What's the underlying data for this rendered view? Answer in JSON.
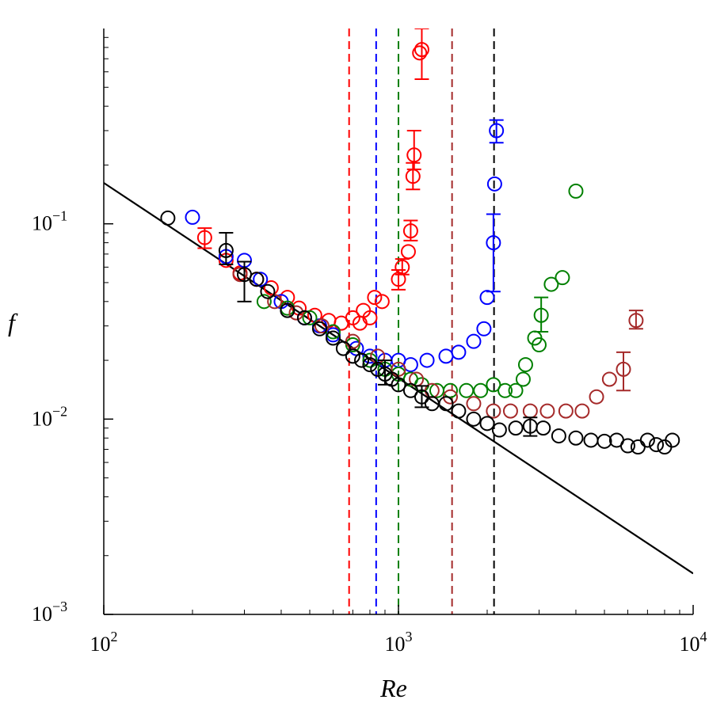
{
  "chart_data": {
    "type": "scatter",
    "title": "",
    "xlabel": "Re",
    "ylabel": "f",
    "xscale": "log",
    "yscale": "log",
    "xlim": [
      100,
      10000
    ],
    "ylim": [
      0.001,
      1
    ],
    "grid": false,
    "x_ticks": [
      {
        "value": 100,
        "base": "10",
        "exp": "2"
      },
      {
        "value": 1000,
        "base": "10",
        "exp": "3"
      },
      {
        "value": 10000,
        "base": "10",
        "exp": "4"
      }
    ],
    "y_ticks": [
      {
        "value": 0.001,
        "base": "10",
        "exp": "−3"
      },
      {
        "value": 0.01,
        "base": "10",
        "exp": "−2"
      },
      {
        "value": 0.1,
        "base": "10",
        "exp": "−1"
      }
    ],
    "reference_line": {
      "color": "#000000",
      "points": [
        [
          100,
          0.162
        ],
        [
          10000,
          0.00162
        ]
      ]
    },
    "vertical_lines": [
      {
        "x": 680,
        "color": "#ff0000"
      },
      {
        "x": 840,
        "color": "#0000ff"
      },
      {
        "x": 1000,
        "color": "#008000"
      },
      {
        "x": 1520,
        "color": "#a52a2a"
      },
      {
        "x": 2110,
        "color": "#000000"
      }
    ],
    "series": [
      {
        "color": "#ff0000",
        "points": [
          [
            220,
            0.085
          ],
          [
            260,
            0.065
          ],
          [
            290,
            0.056
          ],
          [
            330,
            0.052
          ],
          [
            370,
            0.047
          ],
          [
            420,
            0.042
          ],
          [
            460,
            0.037
          ],
          [
            520,
            0.034
          ],
          [
            580,
            0.032
          ],
          [
            640,
            0.031
          ],
          [
            700,
            0.033
          ],
          [
            740,
            0.031
          ],
          [
            760,
            0.036
          ],
          [
            800,
            0.033
          ],
          [
            830,
            0.042
          ],
          [
            880,
            0.04
          ],
          [
            1000,
            0.052
          ],
          [
            1030,
            0.06
          ],
          [
            1080,
            0.072
          ],
          [
            1100,
            0.092
          ],
          [
            1120,
            0.175
          ],
          [
            1130,
            0.225
          ],
          [
            1180,
            0.75
          ],
          [
            1200,
            0.78
          ]
        ],
        "error_bars": [
          [
            220,
            0.075,
            0.095
          ],
          [
            1000,
            0.046,
            0.058
          ],
          [
            1030,
            0.055,
            0.066
          ],
          [
            1100,
            0.082,
            0.104
          ],
          [
            1120,
            0.15,
            0.205
          ],
          [
            1130,
            0.19,
            0.3
          ],
          [
            1200,
            0.55,
            1.0
          ]
        ]
      },
      {
        "color": "#0000ff",
        "points": [
          [
            200,
            0.108
          ],
          [
            260,
            0.068
          ],
          [
            300,
            0.065
          ],
          [
            340,
            0.052
          ],
          [
            400,
            0.04
          ],
          [
            480,
            0.033
          ],
          [
            540,
            0.03
          ],
          [
            600,
            0.027
          ],
          [
            720,
            0.023
          ],
          [
            800,
            0.021
          ],
          [
            900,
            0.02
          ],
          [
            1000,
            0.02
          ],
          [
            1100,
            0.019
          ],
          [
            1250,
            0.02
          ],
          [
            1450,
            0.021
          ],
          [
            1600,
            0.022
          ],
          [
            1800,
            0.025
          ],
          [
            1950,
            0.029
          ],
          [
            2000,
            0.042
          ],
          [
            2100,
            0.08
          ],
          [
            2120,
            0.16
          ],
          [
            2150,
            0.3
          ]
        ],
        "error_bars": [
          [
            2100,
            0.045,
            0.112
          ],
          [
            2150,
            0.26,
            0.34
          ]
        ]
      },
      {
        "color": "#008000",
        "points": [
          [
            350,
            0.04
          ],
          [
            420,
            0.037
          ],
          [
            500,
            0.033
          ],
          [
            600,
            0.028
          ],
          [
            700,
            0.024
          ],
          [
            800,
            0.02
          ],
          [
            900,
            0.018
          ],
          [
            1000,
            0.017
          ],
          [
            1100,
            0.016
          ],
          [
            1200,
            0.015
          ],
          [
            1350,
            0.014
          ],
          [
            1500,
            0.014
          ],
          [
            1700,
            0.014
          ],
          [
            1900,
            0.014
          ],
          [
            2100,
            0.015
          ],
          [
            2300,
            0.014
          ],
          [
            2500,
            0.014
          ],
          [
            2650,
            0.016
          ],
          [
            2700,
            0.019
          ],
          [
            2900,
            0.026
          ],
          [
            3000,
            0.024
          ],
          [
            3050,
            0.034
          ],
          [
            3300,
            0.049
          ],
          [
            3600,
            0.053
          ],
          [
            4000,
            0.147
          ]
        ],
        "error_bars": [
          [
            3050,
            0.028,
            0.042
          ]
        ]
      },
      {
        "color": "#a52a2a",
        "points": [
          [
            290,
            0.055
          ],
          [
            380,
            0.04
          ],
          [
            450,
            0.035
          ],
          [
            550,
            0.03
          ],
          [
            700,
            0.025
          ],
          [
            850,
            0.021
          ],
          [
            1000,
            0.018
          ],
          [
            1150,
            0.016
          ],
          [
            1300,
            0.014
          ],
          [
            1500,
            0.013
          ],
          [
            1800,
            0.012
          ],
          [
            2100,
            0.011
          ],
          [
            2400,
            0.011
          ],
          [
            2800,
            0.011
          ],
          [
            3200,
            0.011
          ],
          [
            3700,
            0.011
          ],
          [
            4200,
            0.011
          ],
          [
            4700,
            0.013
          ],
          [
            5200,
            0.016
          ],
          [
            5800,
            0.018
          ],
          [
            6400,
            0.032
          ]
        ],
        "error_bars": [
          [
            5800,
            0.014,
            0.022
          ],
          [
            6400,
            0.029,
            0.036
          ]
        ]
      },
      {
        "color": "#000000",
        "points": [
          [
            165,
            0.107
          ],
          [
            260,
            0.073
          ],
          [
            300,
            0.055
          ],
          [
            330,
            0.052
          ],
          [
            360,
            0.045
          ],
          [
            420,
            0.036
          ],
          [
            480,
            0.033
          ],
          [
            540,
            0.029
          ],
          [
            600,
            0.026
          ],
          [
            650,
            0.023
          ],
          [
            700,
            0.021
          ],
          [
            750,
            0.02
          ],
          [
            800,
            0.019
          ],
          [
            850,
            0.018
          ],
          [
            900,
            0.017
          ],
          [
            950,
            0.016
          ],
          [
            1000,
            0.015
          ],
          [
            1100,
            0.014
          ],
          [
            1200,
            0.013
          ],
          [
            1300,
            0.012
          ],
          [
            1450,
            0.012
          ],
          [
            1600,
            0.011
          ],
          [
            1800,
            0.01
          ],
          [
            2000,
            0.0095
          ],
          [
            2200,
            0.0088
          ],
          [
            2500,
            0.009
          ],
          [
            2800,
            0.0092
          ],
          [
            3100,
            0.009
          ],
          [
            3500,
            0.0082
          ],
          [
            4000,
            0.008
          ],
          [
            4500,
            0.0078
          ],
          [
            5000,
            0.0077
          ],
          [
            5500,
            0.0078
          ],
          [
            6000,
            0.0073
          ],
          [
            6500,
            0.0072
          ],
          [
            7000,
            0.0078
          ],
          [
            7500,
            0.0074
          ],
          [
            8000,
            0.0072
          ],
          [
            8500,
            0.0078
          ]
        ],
        "error_bars": [
          [
            260,
            0.062,
            0.09
          ],
          [
            300,
            0.04,
            0.064
          ],
          [
            900,
            0.015,
            0.02
          ],
          [
            1200,
            0.0115,
            0.0148
          ],
          [
            2800,
            0.0082,
            0.0102
          ]
        ]
      }
    ]
  }
}
